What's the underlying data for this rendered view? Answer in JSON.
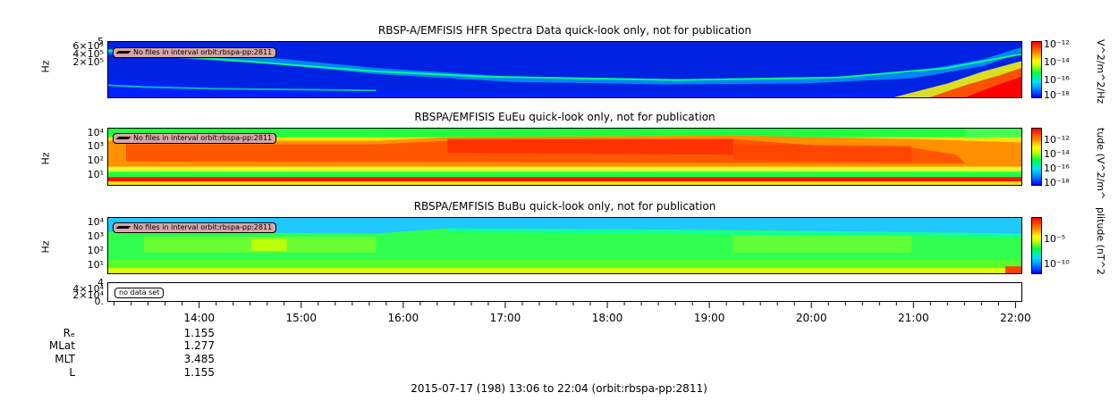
{
  "panels": [
    {
      "id": "hfr",
      "title": "RBSP-A/EMFISIS  HFR Spectra Data quick-look only, not for publication",
      "ylabel": "Hz",
      "yticks": [
        "5",
        "6×10⁵",
        "4×10⁵",
        "2×10⁵"
      ],
      "notice": "No files in interval orbit:rbspa-pp:2811",
      "colorbar": {
        "label": "V^2/m^2/Hz",
        "ticks": [
          "10⁻¹²",
          "10⁻¹⁴",
          "10⁻¹⁶",
          "10⁻¹⁸"
        ]
      }
    },
    {
      "id": "eueu",
      "title": "RBSPA/EMFISIS  EuEu quick-look only, not for publication",
      "ylabel": "Hz",
      "yticks": [
        "10⁴",
        "10³",
        "10²",
        "10¹"
      ],
      "notice": "No files in interval orbit:rbspa-pp:2811",
      "colorbar": {
        "label": "tude (V^2/m^",
        "ticks": [
          "10⁻¹²",
          "10⁻¹⁴",
          "10⁻¹⁶",
          "10⁻¹⁸"
        ]
      }
    },
    {
      "id": "bubu",
      "title": "RBSPA/EMFISIS  BuBu quick-look only, not for publication",
      "ylabel": "Hz",
      "yticks": [
        "10⁴",
        "10³",
        "10²",
        "10¹"
      ],
      "notice": "No files in interval orbit:rbspa-pp:2811",
      "colorbar": {
        "label": "plitude (nT^2",
        "ticks": [
          "10⁻⁵",
          "10⁻¹⁰"
        ]
      }
    },
    {
      "id": "empty",
      "yticks": [
        "4",
        "4×10⁴",
        "2×10⁴",
        "0."
      ],
      "notice": "no data set"
    }
  ],
  "chart_data": {
    "type": "heatmap",
    "x_axis": {
      "ticks": [
        "14:00",
        "15:00",
        "16:00",
        "17:00",
        "18:00",
        "19:00",
        "20:00",
        "21:00",
        "22:00"
      ],
      "range": [
        "13:06",
        "22:04"
      ]
    },
    "ephemeris": {
      "labels": [
        "Rₑ",
        "MLat",
        "MLT",
        "L"
      ],
      "values": [
        "1.155",
        "1.277",
        "3.485",
        "1.155"
      ]
    },
    "footer": "2015-07-17 (198) 13:06 to 22:04 (orbit:rbspa-pp:2811)"
  },
  "colors": {
    "high": "#ff0000",
    "mid": "#00ff40",
    "low": "#0000ff"
  }
}
